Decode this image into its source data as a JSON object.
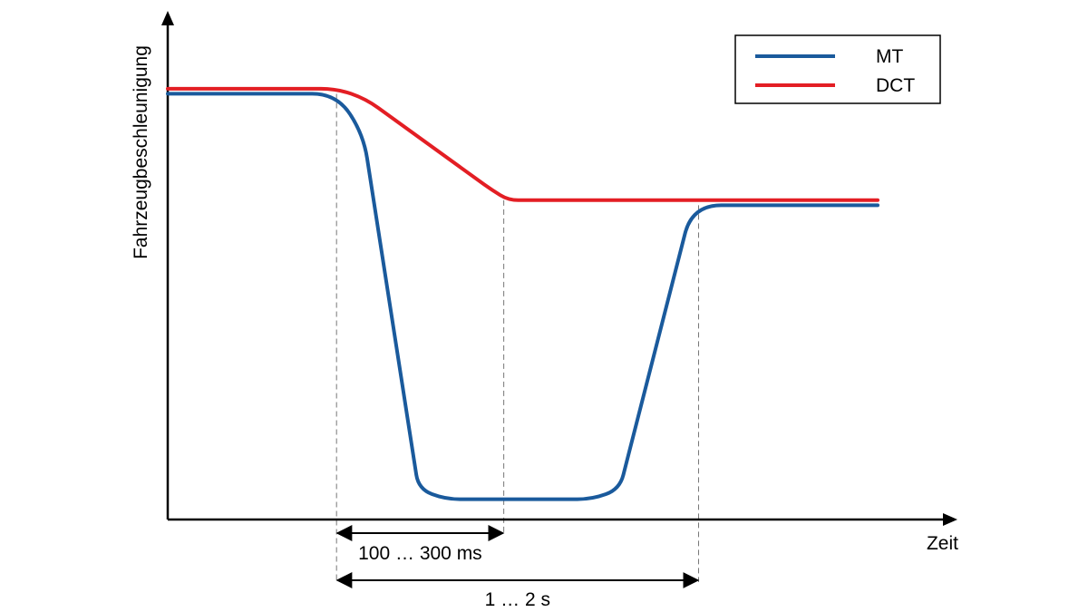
{
  "chart_data": {
    "type": "line",
    "xlabel": "Zeit",
    "ylabel": "Fahrzeugbeschleunigung",
    "xlim": [
      0,
      1
    ],
    "ylim": [
      0,
      1
    ],
    "grid": false,
    "legend_position": "top-right",
    "series": [
      {
        "name": "MT",
        "color": "#1a5a9c",
        "x": [
          0.0,
          0.214,
          0.248,
          0.318,
          0.352,
          0.538,
          0.573,
          0.665,
          0.9
        ],
        "y": [
          0.84,
          0.84,
          0.76,
          0.06,
          0.04,
          0.04,
          0.06,
          0.62,
          0.62
        ]
      },
      {
        "name": "DCT",
        "color": "#e31e24",
        "x": [
          0.0,
          0.214,
          0.251,
          0.411,
          0.432,
          0.9
        ],
        "y": [
          0.85,
          0.85,
          0.83,
          0.65,
          0.63,
          0.63
        ]
      }
    ],
    "annotations": [
      {
        "label": "100 … 300 ms",
        "x_start": 0.214,
        "x_end": 0.426
      },
      {
        "label": "1 … 2 s",
        "x_start": 0.214,
        "x_end": 0.673
      }
    ]
  }
}
